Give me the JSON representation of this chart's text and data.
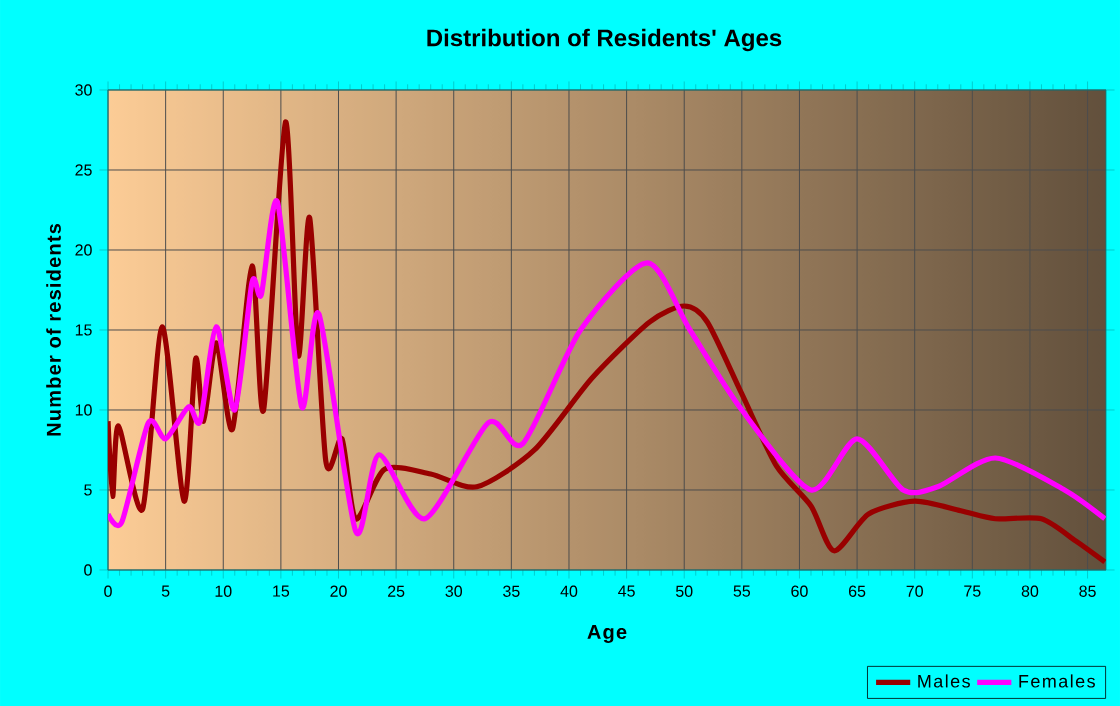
{
  "chart_data": {
    "type": "line",
    "title": "Distribution of Residents' Ages",
    "xlabel": "Age",
    "ylabel": "Number of residents",
    "xlim": [
      0,
      86.6
    ],
    "ylim": [
      0,
      30
    ],
    "xticks": [
      0,
      5,
      10,
      15,
      20,
      25,
      30,
      35,
      40,
      45,
      50,
      55,
      60,
      65,
      70,
      75,
      80,
      85
    ],
    "yticks": [
      0,
      5,
      10,
      15,
      20,
      25,
      30
    ],
    "grid": true,
    "legend": "bottom right",
    "series": [
      {
        "name": "Males",
        "color": "#990000",
        "x": [
          0,
          0.4,
          0.9,
          3,
          4.7,
          6.6,
          7.6,
          8.3,
          9.4,
          10.8,
          12.5,
          13.5,
          15.4,
          16.5,
          17.5,
          18.9,
          20.3,
          21.5,
          24,
          28,
          32,
          37,
          42,
          47,
          50,
          52,
          55,
          58,
          61,
          63,
          66,
          70,
          74,
          77,
          81,
          84,
          86.5
        ],
        "values": [
          9.3,
          4.6,
          9,
          3.8,
          15.2,
          4.3,
          13.2,
          9.3,
          14.2,
          8.8,
          19,
          10,
          28,
          13.4,
          22,
          6.8,
          8.2,
          3.2,
          6.3,
          6,
          5.2,
          7.5,
          12,
          15.5,
          16.5,
          15.5,
          11,
          6.5,
          4,
          1.2,
          3.5,
          4.3,
          3.7,
          3.2,
          3.2,
          1.8,
          0.5
        ]
      },
      {
        "name": "Females",
        "color": "#ff00ff",
        "x": [
          0,
          1.2,
          3.5,
          5,
          7,
          8,
          9.4,
          11,
          12.5,
          13.3,
          14.7,
          16.8,
          18.3,
          21.5,
          23.5,
          27.5,
          33,
          36,
          41,
          46.8,
          50.5,
          55,
          61,
          65,
          69,
          72,
          77,
          83,
          86.5
        ],
        "values": [
          3.5,
          3,
          9.2,
          8.2,
          10.2,
          9.3,
          15.2,
          10,
          18,
          17.2,
          23,
          10.2,
          16,
          2.4,
          7.2,
          3.2,
          9.2,
          7.9,
          15,
          19.2,
          15,
          10,
          5,
          8.2,
          5,
          5.2,
          7,
          5,
          3.2
        ]
      }
    ]
  }
}
